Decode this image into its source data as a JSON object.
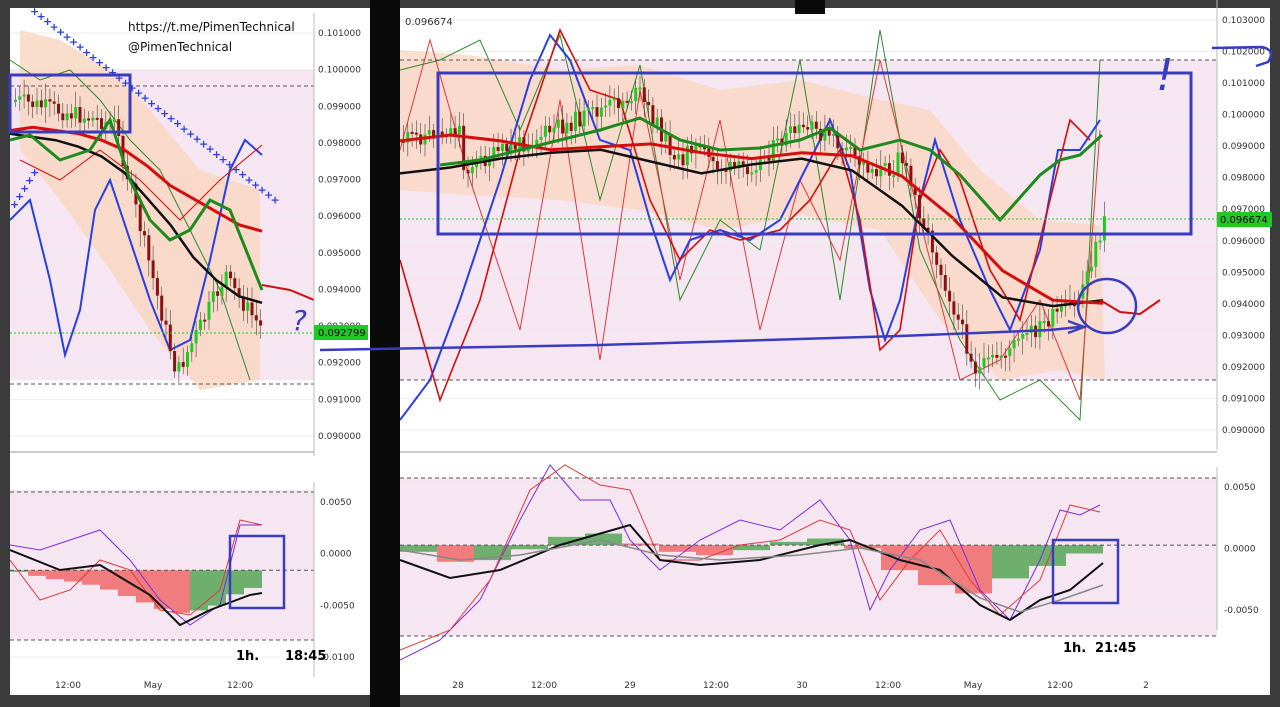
{
  "watermark": {
    "link": "https://t.me/PimenTechnical",
    "handle": "@PimenTechnical"
  },
  "colors": {
    "frame": "#3b3b3b",
    "divider": "#0a0a0a",
    "chart_bg": "#ffffff",
    "band_fill": "#f5e6f2",
    "bollinger_fill": "#f9d6bf",
    "candle_up": "#22c922",
    "candle_down": "#8b1010",
    "ma_black": "#111111",
    "ma_red": "#d50d0d",
    "ma_green": "#1d8a1d",
    "stoch_blue": "#2a3fe0",
    "annotation_blue": "#3a3cbf",
    "price_tag_green": "#22c922"
  },
  "markers": {
    "question": "?",
    "exclamation": "!"
  },
  "chart_data": [
    {
      "type": "line",
      "panel": "left-price",
      "timeframe_label": "1h.",
      "time_label": "18:45",
      "ylim": [
        0.0897,
        0.1021
      ],
      "y_ticks": [
        "0.101000",
        "0.100000",
        "0.099000",
        "0.098000",
        "0.097000",
        "0.096000",
        "0.095000",
        "0.094000",
        "0.093000",
        "0.092000",
        "0.091000",
        "0.090000"
      ],
      "last_price_label": "0.092799",
      "last_price": 0.092799,
      "x_ticks": [
        "12:00",
        "May",
        "12:00"
      ],
      "series": [
        {
          "name": "",
          "values": [
            0.099,
            0.0989,
            0.0988,
            0.0986,
            0.0983,
            0.0978,
            0.097,
            0.0962,
            0.0952,
            0.0945,
            0.094,
            0.0938
          ]
        },
        {
          "name": "",
          "values": [
            0.0991,
            0.0992,
            0.0991,
            0.099,
            0.0988,
            0.0985,
            0.098,
            0.0974,
            0.097,
            0.0966,
            0.0962,
            0.096
          ]
        }
      ]
    },
    {
      "type": "area",
      "panel": "left-oscillator",
      "ylim": [
        -0.0108,
        0.0085
      ],
      "y_ticks": [
        "0.0050",
        "0.0000",
        "-0.0050",
        "-0.0100"
      ],
      "values": [
        -0.0002,
        -0.0007,
        -0.0011,
        -0.0014,
        -0.0018,
        -0.0024,
        -0.0032,
        -0.004,
        -0.0048,
        -0.0053,
        -0.005,
        -0.0044,
        -0.003,
        -0.0022
      ]
    },
    {
      "type": "line",
      "panel": "right-price",
      "timeframe_label": "1h.",
      "time_label": "21:45",
      "ylim": [
        0.0896,
        0.1035
      ],
      "y_ticks": [
        "0.103000",
        "0.102000",
        "0.101000",
        "0.100000",
        "0.099000",
        "0.098000",
        "0.097000",
        "0.096000",
        "0.095000",
        "0.094000",
        "0.093000",
        "0.092000",
        "0.091000",
        "0.090000"
      ],
      "top_price_label": "0.096674",
      "last_price_label": "0.096674",
      "last_price": 0.096674,
      "x_ticks": [
        "28",
        "12:00",
        "29",
        "12:00",
        "30",
        "12:00",
        "May",
        "12:00",
        "2"
      ],
      "series": [
        {
          "name": "",
          "values": [
            0.0983,
            0.0985,
            0.0988,
            0.099,
            0.0991,
            0.0987,
            0.0983,
            0.0986,
            0.0988,
            0.0984,
            0.0972,
            0.0955,
            0.0941,
            0.0938,
            0.094
          ]
        },
        {
          "name": "",
          "values": [
            0.0994,
            0.0996,
            0.0994,
            0.0991,
            0.0992,
            0.0993,
            0.099,
            0.0988,
            0.099,
            0.0989,
            0.0982,
            0.0968,
            0.095,
            0.094,
            0.0939
          ]
        }
      ]
    },
    {
      "type": "area",
      "panel": "right-oscillator",
      "ylim": [
        -0.0078,
        0.007
      ],
      "y_ticks": [
        "0.0050",
        "0.0000",
        "-0.0050"
      ],
      "values": [
        -0.0008,
        -0.002,
        -0.0018,
        -0.0005,
        0.001,
        0.0014,
        0.0002,
        -0.0008,
        -0.0012,
        -0.0006,
        0.0004,
        0.0008,
        -0.0004,
        -0.003,
        -0.0048,
        -0.0058,
        -0.004,
        -0.0025,
        -0.001
      ]
    }
  ]
}
